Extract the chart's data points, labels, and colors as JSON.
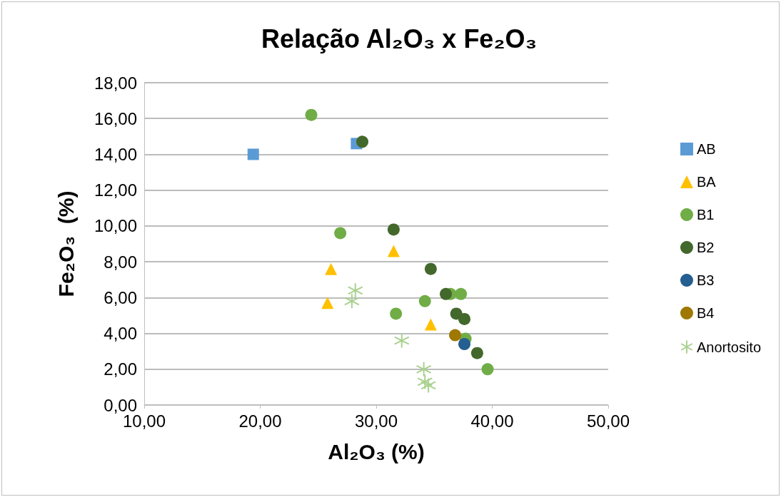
{
  "chart_data": {
    "type": "scatter",
    "title": "Relação Al₂O₃ x Fe₂O₃",
    "xlabel": "Al₂O₃ (%)",
    "ylabel": "Fe₂O₃  (%)",
    "xlim": [
      10,
      50
    ],
    "xticks": [
      {
        "value": 10,
        "label": "10,00"
      },
      {
        "value": 20,
        "label": "20,00"
      },
      {
        "value": 30,
        "label": "30,00"
      },
      {
        "value": 40,
        "label": "40,00"
      },
      {
        "value": 50,
        "label": "50,00"
      }
    ],
    "ylim": [
      0,
      18
    ],
    "yticks": [
      {
        "value": 0,
        "label": "0,00"
      },
      {
        "value": 2,
        "label": "2,00"
      },
      {
        "value": 4,
        "label": "4,00"
      },
      {
        "value": 6,
        "label": "6,00"
      },
      {
        "value": 8,
        "label": "8,00"
      },
      {
        "value": 10,
        "label": "10,00"
      },
      {
        "value": 12,
        "label": "12,00"
      },
      {
        "value": 14,
        "label": "14,00"
      },
      {
        "value": 16,
        "label": "16,00"
      },
      {
        "value": 18,
        "label": "18,00"
      }
    ],
    "grid": "y",
    "legend": "right",
    "series": [
      {
        "name": "AB",
        "color": "#5b9bd5",
        "marker": "square",
        "x": [
          19.4,
          28.3
        ],
        "values": [
          14.0,
          14.6
        ]
      },
      {
        "name": "BA",
        "color": "#ffc000",
        "marker": "triangle",
        "x": [
          31.5,
          26.1,
          25.8,
          34.7
        ],
        "values": [
          8.6,
          7.6,
          5.7,
          4.5
        ]
      },
      {
        "name": "B1",
        "color": "#70ad47",
        "marker": "circle",
        "x": [
          24.4,
          26.9,
          31.7,
          34.2,
          36.4,
          37.3,
          37.7,
          39.6
        ],
        "values": [
          16.2,
          9.6,
          5.1,
          5.8,
          6.2,
          6.2,
          3.7,
          2.0
        ]
      },
      {
        "name": "B2",
        "color": "#43682b",
        "marker": "circle",
        "x": [
          28.8,
          31.5,
          34.7,
          36.0,
          36.9,
          37.6,
          38.7
        ],
        "values": [
          14.7,
          9.8,
          7.6,
          6.2,
          5.1,
          4.8,
          2.9
        ]
      },
      {
        "name": "B3",
        "color": "#255e91",
        "marker": "circle",
        "x": [
          37.6
        ],
        "values": [
          3.4
        ]
      },
      {
        "name": "B4",
        "color": "#9e7800",
        "marker": "circle",
        "x": [
          36.8
        ],
        "values": [
          3.9
        ]
      },
      {
        "name": "Anortosito",
        "color": "#a9d18e",
        "marker": "cross",
        "x": [
          28.2,
          27.9,
          32.2,
          34.1,
          34.2,
          34.5
        ],
        "values": [
          6.4,
          5.8,
          3.6,
          2.0,
          1.3,
          1.1
        ]
      }
    ]
  }
}
